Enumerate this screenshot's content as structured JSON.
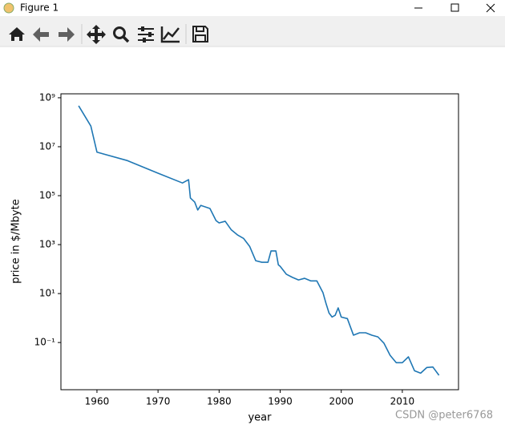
{
  "window_title": "Figure 1",
  "watermark": "CSDN @peter6768",
  "chart_data": {
    "type": "line",
    "xlabel": "year",
    "ylabel": "price in $/Mbyte",
    "x": [
      1957,
      1959,
      1960,
      1965,
      1970,
      1974,
      1975,
      1975.3,
      1976,
      1976.5,
      1977,
      1978.5,
      1979.5,
      1980,
      1981,
      1982,
      1983,
      1984,
      1985,
      1986,
      1987,
      1988,
      1988.5,
      1989.3,
      1989.7,
      1990,
      1991,
      1992,
      1993,
      1994,
      1995,
      1996,
      1997,
      1997.5,
      1998,
      1998.5,
      1999,
      1999.5,
      2000,
      2001,
      2002,
      2003,
      2004,
      2005,
      2006,
      2007,
      2008,
      2009,
      2010,
      2011,
      2012,
      2013,
      2014,
      2015,
      2016
    ],
    "series": [
      {
        "name": "price",
        "color": "#1f77b4",
        "values": [
          470000000,
          70000000,
          6000000,
          2700000,
          830000,
          330000,
          450000,
          80000,
          55000,
          26000,
          40000,
          30000,
          9600,
          7700,
          9000,
          4000,
          2500,
          1800,
          850,
          220,
          190,
          190,
          550,
          550,
          150,
          130,
          62,
          46,
          36,
          42,
          33,
          33,
          11,
          4,
          1.6,
          1.1,
          1.3,
          2.6,
          1.1,
          0.95,
          0.2,
          0.25,
          0.25,
          0.2,
          0.17,
          0.093,
          0.03,
          0.015,
          0.015,
          0.026,
          0.007,
          0.0056,
          0.0095,
          0.01,
          0.0046
        ]
      }
    ],
    "xlim": [
      1954.1,
      2019.2
    ],
    "xticks": [
      1960,
      1970,
      1980,
      1990,
      2000,
      2010
    ],
    "ylim": [
      0.00118,
      1450000000
    ],
    "yscale": "log",
    "yticks": [
      {
        "value": 0.1,
        "label": "10⁻¹"
      },
      {
        "value": 10,
        "label": "10¹"
      },
      {
        "value": 1000,
        "label": "10³"
      },
      {
        "value": 100000,
        "label": "10⁵"
      },
      {
        "value": 10000000,
        "label": "10⁷"
      },
      {
        "value": 1000000000,
        "label": "10⁹"
      }
    ],
    "grid": false
  }
}
